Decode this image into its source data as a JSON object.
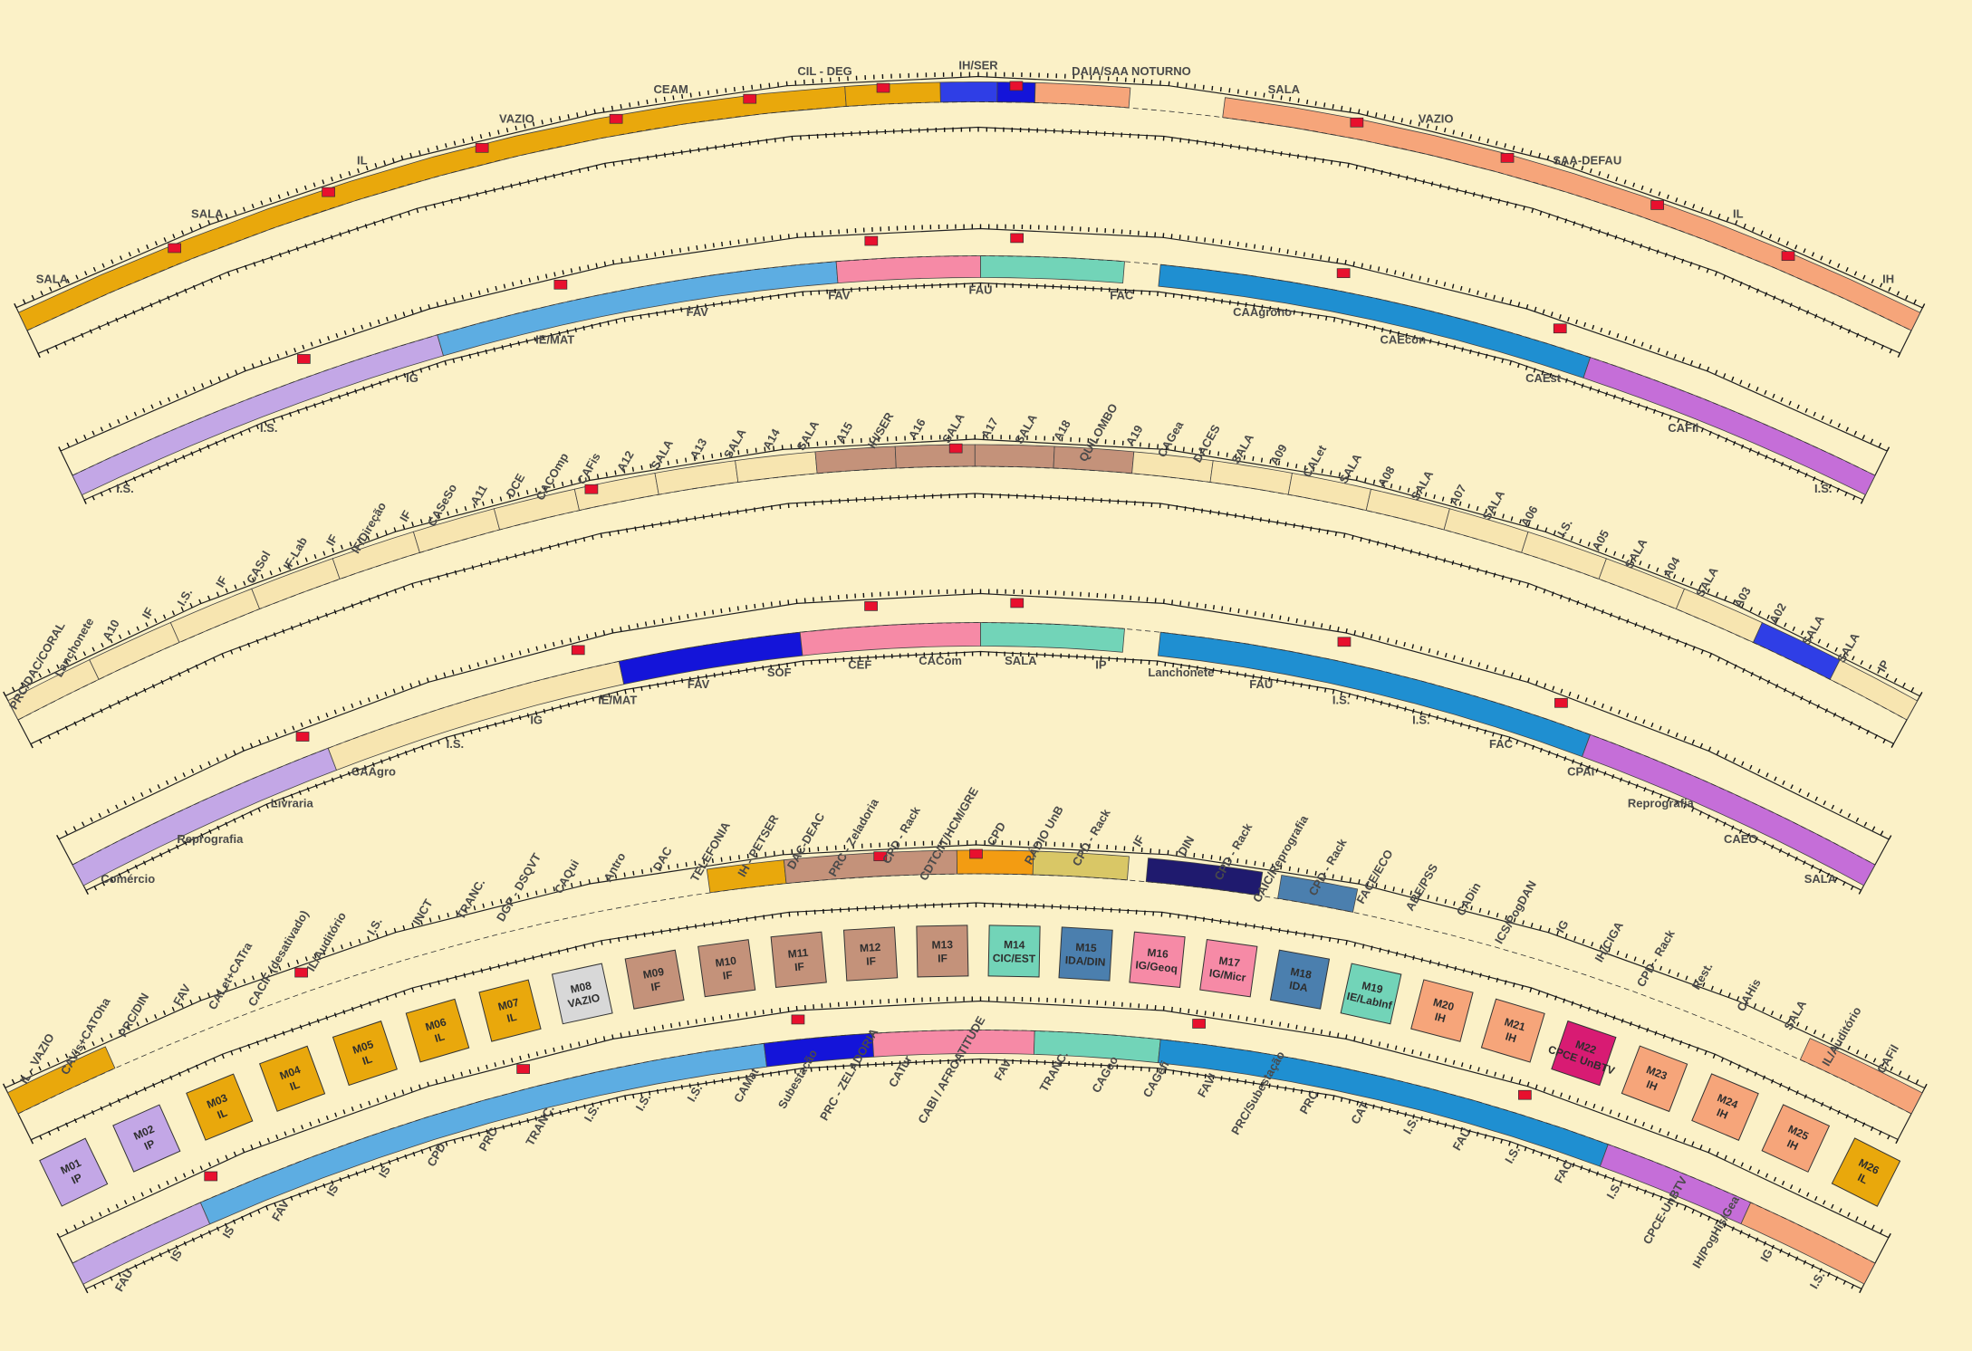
{
  "colors": {
    "background": "#fbf1c7",
    "IL": "#e9a80c",
    "IH": "#f6a57a",
    "FAV": "#5dade2",
    "FAU": "#1f8fd1",
    "FAC": "#c56ed8",
    "IP": "#c3a7e6",
    "IG": "#f68aa6",
    "IE": "#72d4b8",
    "IF": "#c4927a",
    "SALA": "#f7e5b0",
    "CEAM": "#2f3ee6",
    "CPD": "#d9c766",
    "restroom": "#e8102e",
    "corridor": "#fbf1c7",
    "outline": "#222222"
  },
  "level_top": {
    "labels": [
      "SALA",
      "SALA",
      "IL",
      "VAZIO",
      "CEAM",
      "CIL - DEG",
      "IH/SER",
      "DAIA/SAA NOTURNO",
      "SALA",
      "VAZIO",
      "SAA-DEFAU",
      "IL",
      "IH",
      "I.S.",
      "I.S.",
      "IG",
      "IE/MAT",
      "FAV",
      "FAV",
      "FAU",
      "FAC",
      "CAAgrono",
      "CAEcon",
      "CAEst",
      "CAFil",
      "I.S."
    ]
  },
  "level_middle": {
    "labels": [
      "PRC/DAC/CORAL",
      "Lanchonete",
      "A10",
      "IF",
      "I.S.",
      "IF",
      "CASol",
      "IF-Lab",
      "IF",
      "IF/Direção",
      "IF",
      "CASeSo",
      "A11",
      "DCE",
      "CACOmp",
      "CAFis",
      "A12",
      "SALA",
      "A13",
      "SALA",
      "A14",
      "SALA",
      "A15",
      "IH/SER",
      "A16",
      "SALA",
      "A17",
      "SALA",
      "A18",
      "QUILOMBO",
      "A19",
      "CAGea",
      "DACES",
      "SALA",
      "A09",
      "CALet",
      "SALA",
      "A08",
      "SALA",
      "A07",
      "SALA",
      "A06",
      "I.S.",
      "A05",
      "SALA",
      "A04",
      "SALA",
      "A03",
      "A02",
      "SALA",
      "SALA",
      "IP",
      "Comércio",
      "Reprografia",
      "Livraria",
      "CAAgro",
      "I.S.",
      "IG",
      "IE/MAT",
      "FAV",
      "SOF",
      "CEF",
      "CACom",
      "SALA",
      "IP",
      "Lanchonete",
      "FAU",
      "I.S.",
      "I.S.",
      "FAC",
      "CPAI",
      "Reprografia",
      "CAEC",
      "SALA"
    ]
  },
  "level_bottom": {
    "modules": [
      {
        "id": "M01",
        "unit": "IP",
        "color": "#c3a7e6"
      },
      {
        "id": "M02",
        "unit": "IP",
        "color": "#c3a7e6"
      },
      {
        "id": "M03",
        "unit": "IL",
        "color": "#e9a80c"
      },
      {
        "id": "M04",
        "unit": "IL",
        "color": "#e9a80c"
      },
      {
        "id": "M05",
        "unit": "IL",
        "color": "#e9a80c"
      },
      {
        "id": "M06",
        "unit": "IL",
        "color": "#e9a80c"
      },
      {
        "id": "M07",
        "unit": "IL",
        "color": "#e9a80c"
      },
      {
        "id": "M08",
        "unit": "VAZIO",
        "color": "#d8d8d8"
      },
      {
        "id": "M09",
        "unit": "IF",
        "color": "#c4927a"
      },
      {
        "id": "M10",
        "unit": "IF",
        "color": "#c4927a"
      },
      {
        "id": "M11",
        "unit": "IF",
        "color": "#c4927a"
      },
      {
        "id": "M12",
        "unit": "IF",
        "color": "#c4927a"
      },
      {
        "id": "M13",
        "unit": "IF",
        "color": "#c4927a"
      },
      {
        "id": "M14",
        "unit": "CIC/EST",
        "color": "#72d4b8"
      },
      {
        "id": "M15",
        "unit": "IDA/DIN",
        "color": "#4b7fae"
      },
      {
        "id": "M16",
        "unit": "IG/Geoq",
        "color": "#f68aa6"
      },
      {
        "id": "M17",
        "unit": "IG/Micr",
        "color": "#f68aa6"
      },
      {
        "id": "M18",
        "unit": "IDA",
        "color": "#4b7fae"
      },
      {
        "id": "M19",
        "unit": "IE/LabInf",
        "color": "#72d4b8"
      },
      {
        "id": "M20",
        "unit": "IH",
        "color": "#f6a57a"
      },
      {
        "id": "M21",
        "unit": "IH",
        "color": "#f6a57a"
      },
      {
        "id": "M22",
        "unit": "CPCE UnBTV",
        "color": "#d81b73"
      },
      {
        "id": "M23",
        "unit": "IH",
        "color": "#f6a57a"
      },
      {
        "id": "M24",
        "unit": "IH",
        "color": "#f6a57a"
      },
      {
        "id": "M25",
        "unit": "IH",
        "color": "#f6a57a"
      },
      {
        "id": "M26",
        "unit": "IL",
        "color": "#e9a80c"
      }
    ],
    "labels": [
      "IL - VAZIO",
      "CAVis+CATOha",
      "PRC/DIN",
      "FAV",
      "CALet+CATra",
      "CACIF (desativado)",
      "IL/Auditório",
      "I.S.",
      "INCT",
      "TRANC.",
      "DGP - DSQVT",
      "CAQui",
      "Antro",
      "DAC",
      "TELEFONIA",
      "IH - PETSER",
      "DAC-DEAC",
      "PRC - Zeladoria",
      "CPD - Rack",
      "CDTC/IT/HCM/GRE",
      "CPD",
      "RÁDIO UnB",
      "CPD - Rack",
      "IF",
      "DIN",
      "CPD - Rack",
      "CAIC/Reprografia",
      "CPD - Rack",
      "FACE/ECO",
      "ABE/PSS",
      "CADin",
      "ICS/PogDAN",
      "IG",
      "IH/CIGA",
      "CPD - Rack",
      "Rest.",
      "CAHis",
      "SALA",
      "IL/Auditório",
      "CAFil",
      "FAU",
      "IS",
      "IS",
      "FAV",
      "IS",
      "IS",
      "CPD",
      "PRC",
      "TRANC.",
      "I.S.",
      "I.S.",
      "I.S.",
      "CAMat",
      "Subestação",
      "PRC - ZELADORIA",
      "CATur",
      "CABI / AFROATITUDE",
      "FAV",
      "TRANC.",
      "CAGeo",
      "CAGefi",
      "FAVI",
      "PRC/Subestação",
      "PRC",
      "CAT",
      "I.S.",
      "FAU",
      "I.S.",
      "FAC",
      "I.S.",
      "CPCE-UnBTV",
      "IH/PogHis/Gea",
      "IG",
      "I.S."
    ]
  }
}
